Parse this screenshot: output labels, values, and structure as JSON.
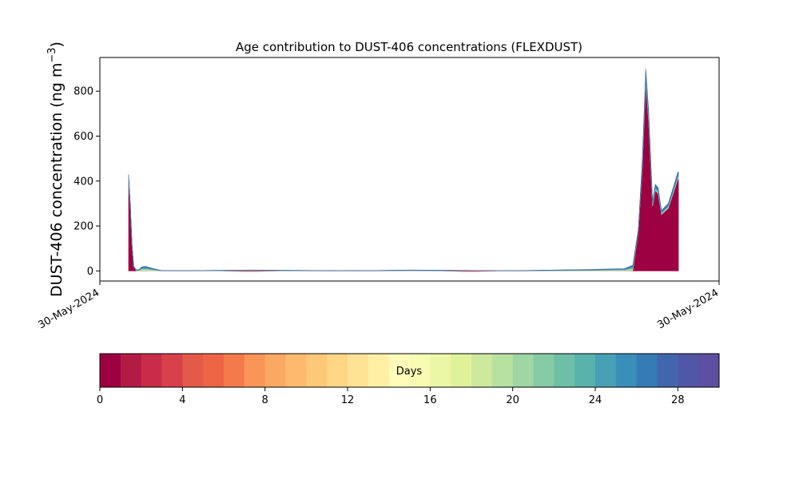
{
  "chart_data": {
    "type": "area",
    "title": "Age contribution to DUST-406 concentrations (FLEXDUST)",
    "ylabel_main": "DUST-406 concentration (ng m",
    "ylabel_exp": "−3",
    "ylabel_close": ")",
    "xlabel": "",
    "x_tick_labels": [
      "30-May-2024",
      "30-May-2024"
    ],
    "ylim": [
      -45,
      950
    ],
    "y_ticks": [
      0,
      200,
      400,
      600,
      800
    ],
    "grid": false,
    "profile": [
      [
        0.0,
        430
      ],
      [
        0.003,
        300
      ],
      [
        0.006,
        120
      ],
      [
        0.009,
        20
      ],
      [
        0.014,
        4
      ],
      [
        0.019,
        6
      ],
      [
        0.023,
        18
      ],
      [
        0.03,
        20
      ],
      [
        0.042,
        12
      ],
      [
        0.058,
        2
      ],
      [
        0.12,
        2
      ],
      [
        0.18,
        3
      ],
      [
        0.22,
        4
      ],
      [
        0.27,
        3
      ],
      [
        0.33,
        2
      ],
      [
        0.38,
        1
      ],
      [
        0.44,
        2
      ],
      [
        0.5,
        4
      ],
      [
        0.56,
        3
      ],
      [
        0.62,
        2
      ],
      [
        0.68,
        1
      ],
      [
        0.73,
        3
      ],
      [
        0.78,
        5
      ],
      [
        0.82,
        6
      ],
      [
        0.86,
        9
      ],
      [
        0.88,
        10
      ],
      [
        0.895,
        25
      ],
      [
        0.905,
        190
      ],
      [
        0.912,
        500
      ],
      [
        0.918,
        900
      ],
      [
        0.923,
        720
      ],
      [
        0.93,
        310
      ],
      [
        0.935,
        385
      ],
      [
        0.94,
        370
      ],
      [
        0.946,
        270
      ],
      [
        0.958,
        300
      ],
      [
        0.968,
        380
      ],
      [
        0.975,
        440
      ],
      [
        0.976,
        440
      ]
    ],
    "dip_negative_frac": 0.012,
    "colorbar": {
      "label": "Days",
      "range": [
        0,
        30
      ],
      "ticks": [
        0,
        4,
        8,
        12,
        16,
        20,
        24,
        28
      ],
      "colors": [
        "#9e0142",
        "#b31b45",
        "#c82c48",
        "#d8404c",
        "#e35a48",
        "#ee6545",
        "#f57a4b",
        "#f99557",
        "#fba862",
        "#fdba6c",
        "#fdc878",
        "#fed685",
        "#fee394",
        "#fff0a5",
        "#fffbb9",
        "#f8fbb2",
        "#ecf7a6",
        "#dff299",
        "#cde99d",
        "#b7e1a1",
        "#9fd6a4",
        "#85cba5",
        "#6dbfa5",
        "#59b1ac",
        "#47a0b4",
        "#3a8fba",
        "#357bb6",
        "#4266ad",
        "#5057a7",
        "#5e4fa2"
      ]
    },
    "area_band_colors": [
      "#9e0142",
      "#cde99d",
      "#7fcba4",
      "#47a0b4",
      "#3e7dbb",
      "#3a6ab6"
    ]
  }
}
